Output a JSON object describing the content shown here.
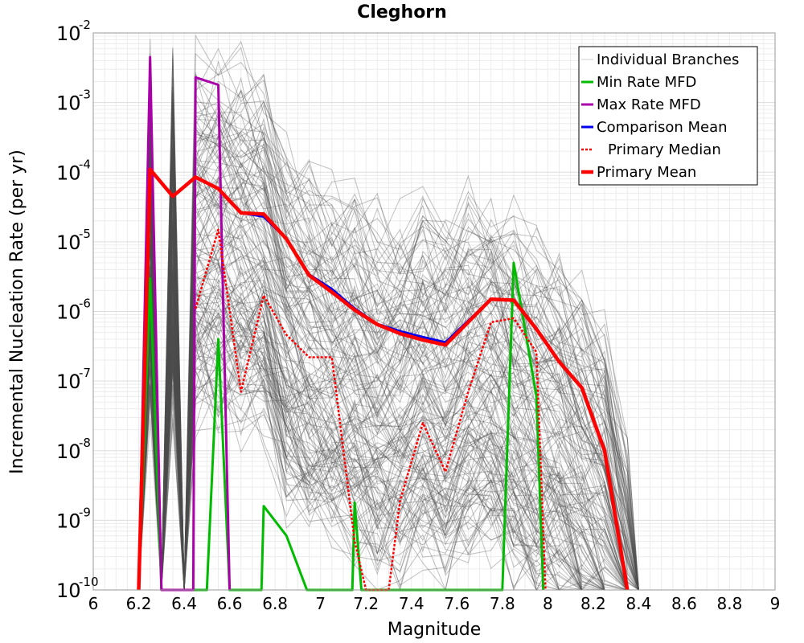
{
  "chart_data": {
    "type": "line",
    "title": "Cleghorn",
    "xlabel": "Magnitude",
    "ylabel": "Incremental Nucleation Rate (per yr)",
    "xlim": [
      6,
      9
    ],
    "ylim": [
      1e-10,
      0.01
    ],
    "y_scale": "log",
    "grid": true,
    "legend_position": "top-right",
    "x_ticks": [
      "6",
      "6.2",
      "6.4",
      "6.6",
      "6.8",
      "7",
      "7.2",
      "7.4",
      "7.6",
      "7.8",
      "8",
      "8.2",
      "8.4",
      "8.6",
      "8.8",
      "9"
    ],
    "y_ticks": [
      {
        "base": "10",
        "exp": "-10",
        "value": 1e-10
      },
      {
        "base": "10",
        "exp": "-9",
        "value": 1e-09
      },
      {
        "base": "10",
        "exp": "-8",
        "value": 1e-08
      },
      {
        "base": "10",
        "exp": "-7",
        "value": 1e-07
      },
      {
        "base": "10",
        "exp": "-6",
        "value": 1e-06
      },
      {
        "base": "10",
        "exp": "-5",
        "value": 1e-05
      },
      {
        "base": "10",
        "exp": "-4",
        "value": 0.0001
      },
      {
        "base": "10",
        "exp": "-3",
        "value": 0.001
      },
      {
        "base": "10",
        "exp": "-2",
        "value": 0.01
      }
    ],
    "series": [
      {
        "name": "Individual Branches",
        "color": "#999999",
        "style": "thin",
        "x": [
          6.2,
          6.25,
          6.3,
          6.35,
          6.4,
          6.45,
          6.55,
          6.65,
          6.75,
          6.85,
          6.95,
          7.05,
          7.15,
          7.25,
          7.35,
          7.45,
          7.55,
          7.65,
          7.75,
          7.85,
          7.95,
          8.05,
          8.15,
          8.25,
          8.35,
          8.4
        ],
        "y": [
          1e-10,
          0.004,
          1e-10,
          0.003,
          1e-10,
          0.002,
          0.002,
          0.0015,
          0.001,
          0.0001,
          5e-05,
          3e-05,
          2e-05,
          1e-05,
          1e-05,
          2e-05,
          1e-05,
          2e-05,
          2e-05,
          1e-05,
          5e-06,
          3e-06,
          1e-06,
          3e-07,
          1e-08,
          1e-10
        ]
      },
      {
        "name": "Min Rate MFD",
        "color": "#00bb00",
        "style": "solid",
        "x": [
          6.2,
          6.25,
          6.3,
          6.5,
          6.55,
          6.6,
          6.74,
          6.75,
          6.85,
          6.94,
          7.14,
          7.15,
          7.18,
          7.8,
          7.85,
          7.95,
          7.98
        ],
        "y": [
          1e-10,
          3e-06,
          1e-10,
          1e-10,
          4e-07,
          1e-10,
          1e-10,
          1.6e-09,
          6e-10,
          1e-10,
          1e-10,
          1.8e-09,
          1e-10,
          1e-10,
          5e-06,
          6e-08,
          1e-10
        ]
      },
      {
        "name": "Max Rate MFD",
        "color": "#aa00aa",
        "style": "solid",
        "x": [
          6.2,
          6.25,
          6.3,
          6.44,
          6.45,
          6.55,
          6.6
        ],
        "y": [
          1e-10,
          0.0045,
          1e-10,
          1e-10,
          0.0023,
          0.0018,
          1e-10
        ]
      },
      {
        "name": "Comparison Mean",
        "color": "#0000ee",
        "style": "solid",
        "x": [
          6.2,
          6.25,
          6.35,
          6.45,
          6.55,
          6.65,
          6.75,
          6.85,
          6.95,
          7.05,
          7.15,
          7.25,
          7.35,
          7.45,
          7.55,
          7.75,
          7.85,
          7.95,
          8.05,
          8.15,
          8.25,
          8.35
        ],
        "y": [
          1e-10,
          0.00011,
          4.5e-05,
          8.5e-05,
          5.8e-05,
          2.6e-05,
          2.3e-05,
          1.1e-05,
          3.4e-06,
          2.1e-06,
          1.1e-06,
          6.6e-07,
          5.2e-07,
          4.3e-07,
          3.6e-07,
          1.5e-06,
          1.45e-06,
          5.6e-07,
          1.9e-07,
          8e-08,
          1e-08,
          1e-10
        ]
      },
      {
        "name": "Primary Median",
        "color": "#ff0000",
        "style": "dotted",
        "x": [
          6.45,
          6.55,
          6.65,
          6.75,
          6.85,
          6.95,
          7.05,
          7.15,
          7.2,
          7.3,
          7.35,
          7.45,
          7.55,
          7.65,
          7.75,
          7.85,
          7.95,
          7.99
        ],
        "y": [
          1.1e-06,
          1.5e-05,
          7e-08,
          1.7e-06,
          4.6e-07,
          2.2e-07,
          2.2e-07,
          5e-10,
          1e-10,
          1e-10,
          1.9e-09,
          2.5e-08,
          5e-09,
          7e-08,
          7e-07,
          8e-07,
          2.6e-07,
          1e-10
        ]
      },
      {
        "name": "Primary Mean",
        "color": "#ff0000",
        "style": "thick",
        "x": [
          6.2,
          6.25,
          6.35,
          6.45,
          6.55,
          6.65,
          6.75,
          6.85,
          6.95,
          7.05,
          7.15,
          7.25,
          7.35,
          7.45,
          7.55,
          7.75,
          7.85,
          7.95,
          8.05,
          8.15,
          8.25,
          8.35
        ],
        "y": [
          1e-10,
          0.00011,
          4.5e-05,
          8.5e-05,
          5.8e-05,
          2.6e-05,
          2.5e-05,
          1.1e-05,
          3.3e-06,
          1.9e-06,
          1.05e-06,
          6.5e-07,
          4.8e-07,
          3.9e-07,
          3.3e-07,
          1.5e-06,
          1.45e-06,
          5.6e-07,
          1.9e-07,
          8e-08,
          1e-08,
          1e-10
        ]
      }
    ]
  }
}
